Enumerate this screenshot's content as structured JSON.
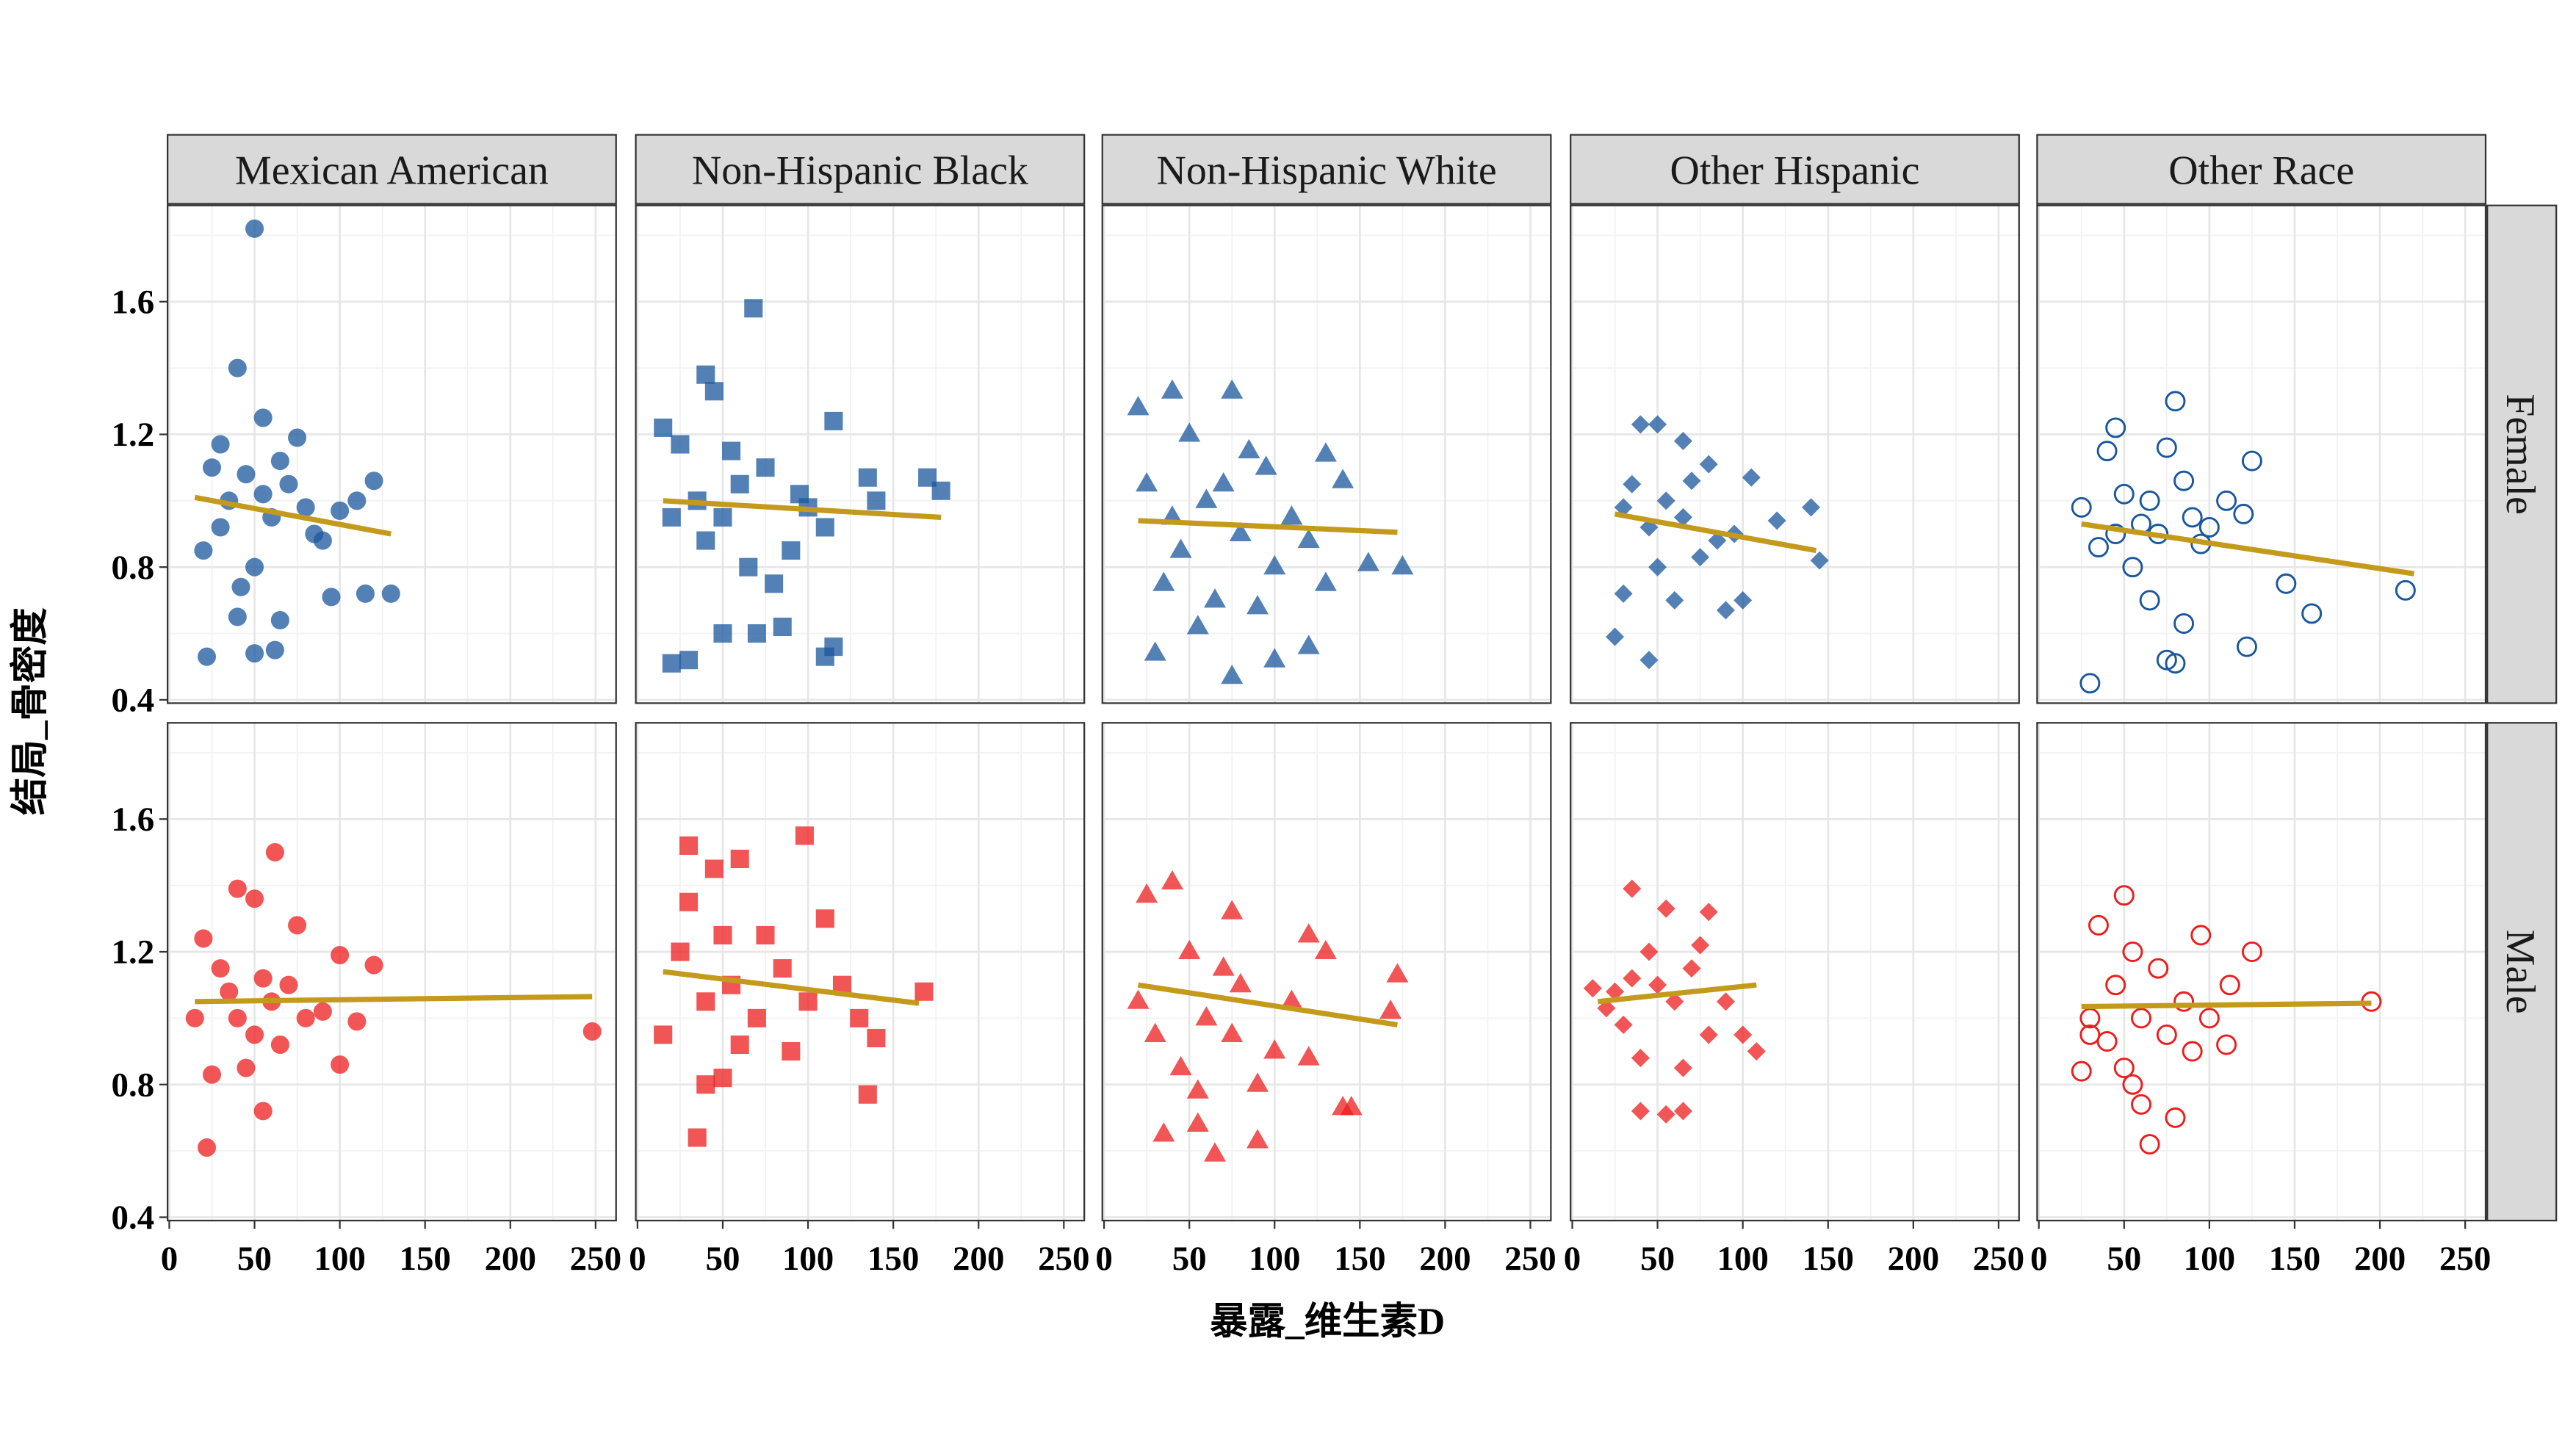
{
  "chart_data": {
    "type": "scatter",
    "xlabel": "暴露_维生素D",
    "ylabel": "结局_骨密度",
    "xlim": [
      -1,
      262
    ],
    "ylim": [
      0.39,
      1.89
    ],
    "xticks": [
      0,
      50,
      100,
      150,
      200,
      250
    ],
    "yticks": [
      0.4,
      0.8,
      1.2,
      1.6
    ],
    "x_minor_ticks": [
      25,
      75,
      125,
      175,
      225
    ],
    "y_minor_ticks": [
      0.6,
      1.0,
      1.4,
      1.8
    ],
    "grid": true,
    "columns": [
      "Mexican American",
      "Non-Hispanic Black",
      "Non-Hispanic White",
      "Other Hispanic",
      "Other Race"
    ],
    "markers": [
      "circle",
      "square",
      "triangle",
      "diamond",
      "open-circle"
    ],
    "rows": [
      "Female",
      "Male"
    ],
    "row_colors": [
      "#1b579c",
      "#ee1c1c"
    ],
    "trend_color": "#c49a1c",
    "panels": [
      {
        "x": [
          50,
          40,
          22,
          50,
          62,
          130,
          115,
          95,
          40,
          65,
          20,
          30,
          55,
          75,
          120,
          110,
          45,
          60,
          35,
          70,
          85,
          50,
          30,
          65,
          80,
          100,
          25,
          55,
          90,
          42
        ],
        "y": [
          1.82,
          1.4,
          0.53,
          0.54,
          0.55,
          0.72,
          0.72,
          0.71,
          0.65,
          0.64,
          0.85,
          1.17,
          1.25,
          1.19,
          1.06,
          1.0,
          1.08,
          0.95,
          1.0,
          1.05,
          0.9,
          0.8,
          0.92,
          1.12,
          0.98,
          0.97,
          1.1,
          1.02,
          0.88,
          0.74
        ],
        "trend": {
          "x": [
            15,
            130
          ],
          "y": [
            1.01,
            0.9
          ]
        }
      },
      {
        "x": [
          68,
          40,
          45,
          15,
          25,
          115,
          170,
          178,
          135,
          140,
          110,
          115,
          110,
          20,
          30,
          50,
          85,
          70,
          60,
          35,
          50,
          75,
          95,
          20,
          40,
          65,
          90,
          55,
          80,
          100
        ],
        "y": [
          1.58,
          1.38,
          1.33,
          1.22,
          1.17,
          1.24,
          1.07,
          1.03,
          1.07,
          1.0,
          0.92,
          0.56,
          0.53,
          0.51,
          0.52,
          0.6,
          0.62,
          0.6,
          1.05,
          1.0,
          0.95,
          1.1,
          1.02,
          0.95,
          0.88,
          0.8,
          0.85,
          1.15,
          0.75,
          0.98
        ],
        "trend": {
          "x": [
            15,
            178
          ],
          "y": [
            1.0,
            0.95
          ]
        }
      },
      {
        "x": [
          75,
          40,
          20,
          130,
          140,
          175,
          155,
          75,
          30,
          100,
          120,
          50,
          60,
          80,
          45,
          95,
          110,
          25,
          65,
          85,
          35,
          55,
          100,
          70,
          120,
          90,
          40,
          130
        ],
        "y": [
          1.33,
          1.33,
          1.28,
          1.14,
          1.06,
          0.8,
          0.81,
          0.47,
          0.54,
          0.52,
          0.56,
          1.2,
          1.0,
          0.9,
          0.85,
          1.1,
          0.95,
          1.05,
          0.7,
          1.15,
          0.75,
          0.62,
          0.8,
          1.05,
          0.88,
          0.68,
          0.95,
          0.75
        ],
        "trend": {
          "x": [
            20,
            172
          ],
          "y": [
            0.94,
            0.905
          ]
        }
      },
      {
        "x": [
          40,
          50,
          65,
          80,
          105,
          140,
          145,
          25,
          45,
          30,
          60,
          90,
          100,
          75,
          35,
          55,
          45,
          65,
          85,
          120,
          30,
          50,
          70,
          95
        ],
        "y": [
          1.23,
          1.23,
          1.18,
          1.11,
          1.07,
          0.98,
          0.82,
          0.59,
          0.52,
          0.72,
          0.7,
          0.67,
          0.7,
          0.83,
          1.05,
          1.0,
          0.92,
          0.95,
          0.88,
          0.94,
          0.98,
          0.8,
          1.06,
          0.9
        ],
        "trend": {
          "x": [
            25,
            143
          ],
          "y": [
            0.96,
            0.85
          ]
        }
      },
      {
        "x": [
          80,
          45,
          40,
          75,
          125,
          85,
          110,
          120,
          215,
          145,
          160,
          122,
          30,
          75,
          80,
          65,
          55,
          25,
          60,
          70,
          90,
          50,
          35,
          95,
          85,
          100,
          45,
          65
        ],
        "y": [
          1.3,
          1.22,
          1.15,
          1.16,
          1.12,
          1.06,
          1.0,
          0.96,
          0.73,
          0.75,
          0.66,
          0.56,
          0.45,
          0.52,
          0.51,
          0.7,
          0.8,
          0.98,
          0.93,
          0.9,
          0.95,
          1.02,
          0.86,
          0.87,
          0.63,
          0.92,
          0.9,
          1.0
        ],
        "trend": {
          "x": [
            25,
            220
          ],
          "y": [
            0.93,
            0.78
          ]
        }
      },
      {
        "x": [
          62,
          40,
          50,
          20,
          248,
          120,
          100,
          75,
          22,
          55,
          100,
          25,
          45,
          15,
          60,
          70,
          35,
          80,
          50,
          90,
          30,
          65,
          40,
          110,
          55
        ],
        "y": [
          1.5,
          1.39,
          1.36,
          1.24,
          0.96,
          1.16,
          1.19,
          1.28,
          0.61,
          0.72,
          0.86,
          0.83,
          0.85,
          1.0,
          1.05,
          1.1,
          1.08,
          1.0,
          0.95,
          1.02,
          1.15,
          0.92,
          1.0,
          0.99,
          1.12
        ],
        "trend": {
          "x": [
            15,
            248
          ],
          "y": [
            1.05,
            1.065
          ]
        }
      },
      {
        "x": [
          98,
          30,
          60,
          45,
          110,
          140,
          135,
          35,
          40,
          50,
          168,
          130,
          15,
          25,
          55,
          70,
          85,
          40,
          100,
          60,
          75,
          120,
          30,
          90,
          50
        ],
        "y": [
          1.55,
          1.52,
          1.48,
          1.45,
          1.3,
          0.94,
          0.77,
          0.64,
          0.8,
          0.82,
          1.08,
          1.0,
          0.95,
          1.2,
          1.1,
          1.0,
          1.15,
          1.05,
          1.05,
          0.92,
          1.25,
          1.1,
          1.35,
          0.9,
          1.25
        ],
        "trend": {
          "x": [
            15,
            165
          ],
          "y": [
            1.14,
            1.045
          ]
        }
      },
      {
        "x": [
          40,
          25,
          75,
          120,
          130,
          172,
          168,
          145,
          140,
          65,
          90,
          55,
          35,
          20,
          50,
          60,
          80,
          100,
          45,
          70,
          110,
          30,
          90,
          120,
          55,
          75
        ],
        "y": [
          1.41,
          1.37,
          1.32,
          1.25,
          1.2,
          1.13,
          1.02,
          0.73,
          0.73,
          0.59,
          0.63,
          0.68,
          0.65,
          1.05,
          1.2,
          1.0,
          1.1,
          0.9,
          0.85,
          1.15,
          1.05,
          0.95,
          0.8,
          0.88,
          0.78,
          0.95
        ],
        "trend": {
          "x": [
            20,
            172
          ],
          "y": [
            1.1,
            0.98
          ]
        }
      },
      {
        "x": [
          35,
          55,
          80,
          75,
          12,
          20,
          108,
          40,
          55,
          65,
          40,
          100,
          30,
          50,
          60,
          70,
          45,
          80,
          90,
          35,
          65,
          25
        ],
        "y": [
          1.39,
          1.33,
          1.32,
          1.22,
          1.09,
          1.03,
          0.9,
          0.72,
          0.71,
          0.72,
          0.88,
          0.95,
          0.98,
          1.1,
          1.05,
          1.15,
          1.2,
          0.95,
          1.05,
          1.12,
          0.85,
          1.08
        ],
        "trend": {
          "x": [
            15,
            108
          ],
          "y": [
            1.05,
            1.1
          ]
        }
      },
      {
        "x": [
          50,
          35,
          95,
          125,
          195,
          112,
          110,
          65,
          80,
          60,
          25,
          50,
          55,
          30,
          45,
          60,
          75,
          85,
          40,
          70,
          100,
          90,
          55,
          30
        ],
        "y": [
          1.37,
          1.28,
          1.25,
          1.2,
          1.05,
          1.1,
          0.92,
          0.62,
          0.7,
          0.74,
          0.84,
          0.85,
          0.8,
          1.0,
          1.1,
          1.0,
          0.95,
          1.05,
          0.93,
          1.15,
          1.0,
          0.9,
          1.2,
          0.95
        ],
        "trend": {
          "x": [
            25,
            195
          ],
          "y": [
            1.035,
            1.045
          ]
        }
      }
    ]
  }
}
